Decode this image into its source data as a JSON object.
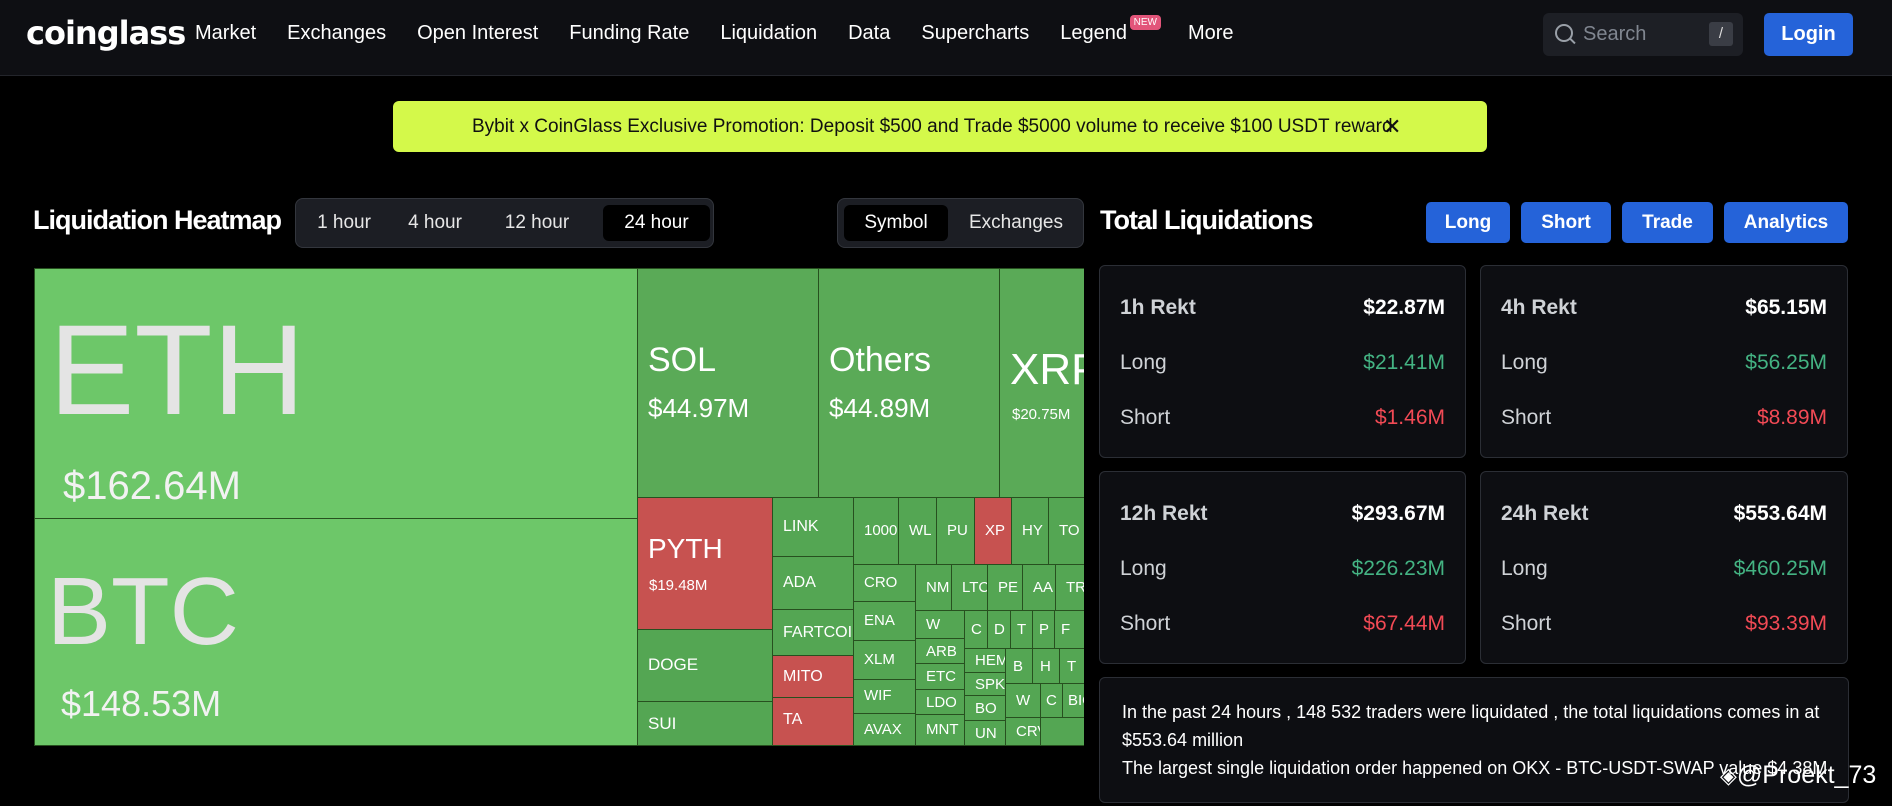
{
  "nav": {
    "logo": "coinglass",
    "items": [
      "Market",
      "Exchanges",
      "Open Interest",
      "Funding Rate",
      "Liquidation",
      "Data",
      "Supercharts",
      "Legend",
      "More"
    ],
    "new_badge": "NEW",
    "search_placeholder": "Search",
    "search_key": "/",
    "login": "Login"
  },
  "promo": {
    "text": "Bybit x CoinGlass Exclusive Promotion: Deposit $500 and Trade $5000 volume to receive $100 USDT reward",
    "close": "✕"
  },
  "heatmap": {
    "title": "Liquidation Heatmap",
    "ranges": [
      "1 hour",
      "4 hour",
      "12 hour",
      "24 hour"
    ],
    "active_range": "24 hour",
    "views": [
      "Symbol",
      "Exchanges"
    ],
    "active_view": "Symbol",
    "cells": [
      {
        "name": "ETH",
        "value": "$162.64M"
      },
      {
        "name": "BTC",
        "value": "$148.53M"
      },
      {
        "name": "SOL",
        "value": "$44.97M"
      },
      {
        "name": "Others",
        "value": "$44.89M"
      },
      {
        "name": "XRP",
        "value": "$20.75M"
      },
      {
        "name": "PYTH",
        "value": "$19.48M"
      },
      {
        "name": "LINK"
      },
      {
        "name": "ADA"
      },
      {
        "name": "FARTCOIN"
      },
      {
        "name": "MITO"
      },
      {
        "name": "TA"
      },
      {
        "name": "DOGE"
      },
      {
        "name": "SUI"
      },
      {
        "name": "1000"
      },
      {
        "name": "WL"
      },
      {
        "name": "PU"
      },
      {
        "name": "XP"
      },
      {
        "name": "HY"
      },
      {
        "name": "TO"
      },
      {
        "name": "CRO"
      },
      {
        "name": "ENA"
      },
      {
        "name": "XLM"
      },
      {
        "name": "WIF"
      },
      {
        "name": "AVAX"
      },
      {
        "name": "NM"
      },
      {
        "name": "LTC"
      },
      {
        "name": "PE"
      },
      {
        "name": "AA"
      },
      {
        "name": "TR"
      },
      {
        "name": "W"
      },
      {
        "name": "C"
      },
      {
        "name": "D"
      },
      {
        "name": "T"
      },
      {
        "name": "P"
      },
      {
        "name": "F"
      },
      {
        "name": "ARB"
      },
      {
        "name": "HEM"
      },
      {
        "name": "B"
      },
      {
        "name": "H"
      },
      {
        "name": "T"
      },
      {
        "name": "ETC"
      },
      {
        "name": "SPK"
      },
      {
        "name": "1000"
      },
      {
        "name": "LDO"
      },
      {
        "name": "BO"
      },
      {
        "name": "W"
      },
      {
        "name": "C"
      },
      {
        "name": "BIO"
      },
      {
        "name": "MNT"
      },
      {
        "name": "UN"
      },
      {
        "name": "CRV"
      }
    ]
  },
  "total": {
    "title": "Total Liquidations",
    "buttons": [
      "Long",
      "Short",
      "Trade",
      "Analytics"
    ],
    "cards": [
      {
        "label": "1h Rekt",
        "total": "$22.87M",
        "long_label": "Long",
        "long": "$21.41M",
        "short_label": "Short",
        "short": "$1.46M"
      },
      {
        "label": "4h Rekt",
        "total": "$65.15M",
        "long_label": "Long",
        "long": "$56.25M",
        "short_label": "Short",
        "short": "$8.89M"
      },
      {
        "label": "12h Rekt",
        "total": "$293.67M",
        "long_label": "Long",
        "long": "$226.23M",
        "short_label": "Short",
        "short": "$67.44M"
      },
      {
        "label": "24h Rekt",
        "total": "$553.64M",
        "long_label": "Long",
        "long": "$460.25M",
        "short_label": "Short",
        "short": "$93.39M"
      }
    ],
    "summary_line1": "In the past 24 hours , 148 532 traders were liquidated , the total liquidations comes in at $553.64 million",
    "summary_line2": "The largest single liquidation order happened on OKX - BTC-USDT-SWAP value $4.38M"
  },
  "watermark": "@Proekt_73"
}
